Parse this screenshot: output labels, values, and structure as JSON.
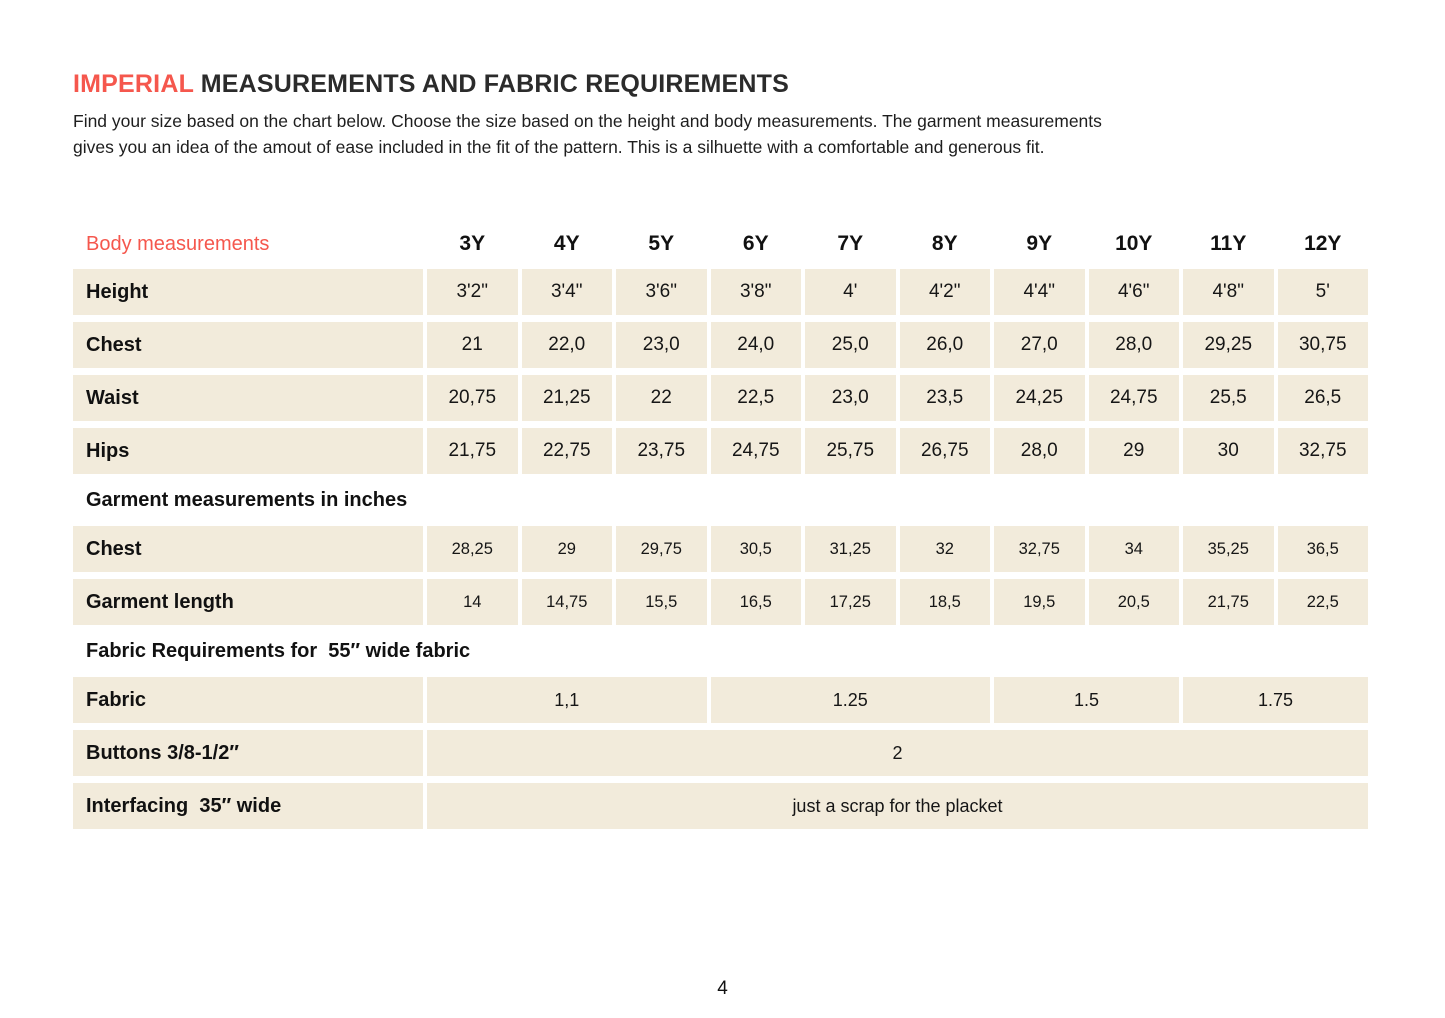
{
  "page": {
    "title_accent": "IMPERIAL",
    "title_rest": " MEASUREMENTS AND FABRIC REQUIREMENTS",
    "intro_line1": "Find your size based on the chart below. Choose the size based on the height and body measurements. The garment measurements",
    "intro_line2": "gives you an idea of the amout of ease included in the fit of the pattern. This is a silhuette with a comfortable and generous fit.",
    "page_number": "4"
  },
  "colors": {
    "accent": "#f5574d",
    "cell_bg": "#f2ebdb",
    "text": "#1d1d1d"
  },
  "table": {
    "header_label": "Body measurements",
    "sizes": [
      "3Y",
      "4Y",
      "5Y",
      "6Y",
      "7Y",
      "8Y",
      "9Y",
      "10Y",
      "11Y",
      "12Y"
    ],
    "body_rows": [
      {
        "label": "Height",
        "values": [
          "3'2\"",
          "3'4\"",
          "3'6\"",
          "3'8\"",
          "4'",
          "4'2\"",
          "4'4\"",
          "4'6\"",
          "4'8\"",
          "5'"
        ]
      },
      {
        "label": "Chest",
        "values": [
          "21",
          "22,0",
          "23,0",
          "24,0",
          "25,0",
          "26,0",
          "27,0",
          "28,0",
          "29,25",
          "30,75"
        ]
      },
      {
        "label": "Waist",
        "values": [
          "20,75",
          "21,25",
          "22",
          "22,5",
          "23,0",
          "23,5",
          "24,25",
          "24,75",
          "25,5",
          "26,5"
        ]
      },
      {
        "label": "Hips",
        "values": [
          "21,75",
          "22,75",
          "23,75",
          "24,75",
          "25,75",
          "26,75",
          "28,0",
          "29",
          "30",
          "32,75"
        ]
      }
    ],
    "garment_section_label": "Garment measurements in inches",
    "garment_rows": [
      {
        "label": "Chest",
        "values": [
          "28,25",
          "29",
          "29,75",
          "30,5",
          "31,25",
          "32",
          "32,75",
          "34",
          "35,25",
          "36,5"
        ]
      },
      {
        "label": "Garment length",
        "values": [
          "14",
          "14,75",
          "15,5",
          "16,5",
          "17,25",
          "18,5",
          "19,5",
          "20,5",
          "21,75",
          "22,5"
        ]
      }
    ],
    "fabric_section_label": "Fabric Requirements for  55″ wide fabric",
    "fabric_row": {
      "label": "Fabric",
      "cells": [
        {
          "value": "1,1",
          "span": 3
        },
        {
          "value": "1.25",
          "span": 3
        },
        {
          "value": "1.5",
          "span": 2
        },
        {
          "value": "1.75",
          "span": 2
        }
      ]
    },
    "buttons_row": {
      "label": "Buttons 3/8-1/2″",
      "value": "2",
      "span": 10
    },
    "interfacing_row": {
      "label": "Interfacing  35″ wide",
      "value": "just a scrap for the placket",
      "span": 10
    }
  }
}
